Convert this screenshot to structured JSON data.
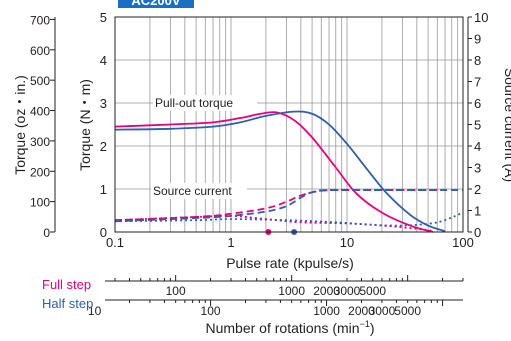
{
  "header": {
    "tag_text": "AC200V",
    "tag_color": "#1b6fc2"
  },
  "chart_data": {
    "type": "line",
    "x_scale": "log",
    "xlim": [
      0.1,
      100
    ],
    "xlabel": "Pulse rate (kpulse/s)",
    "x_ticks": [
      {
        "value": 0.1,
        "label": "0.1"
      },
      {
        "value": 1,
        "label": "1"
      },
      {
        "value": 10,
        "label": "10"
      },
      {
        "value": 100,
        "label": "100"
      }
    ],
    "ylabel_nm": "Torque (N・m)",
    "ylim_nm": [
      0,
      5
    ],
    "y_ticks_nm": [
      "0",
      "1",
      "2",
      "3",
      "4",
      "5"
    ],
    "ylabel_ozin": "Torque (oz・in.)",
    "y_ticks_ozin": [
      {
        "value": 0,
        "label": "0"
      },
      {
        "value": 100,
        "label": "100"
      },
      {
        "value": 200,
        "label": "200"
      },
      {
        "value": 300,
        "label": "300"
      },
      {
        "value": 400,
        "label": "400"
      },
      {
        "value": 500,
        "label": "500"
      },
      {
        "value": 600,
        "label": "600"
      },
      {
        "value": 700,
        "label": "700"
      }
    ],
    "ylabel_right": "Source current (A)",
    "ylim_right": [
      0,
      10
    ],
    "y_ticks_right": [
      "0",
      "1",
      "2",
      "3",
      "4",
      "5",
      "6",
      "7",
      "8",
      "9",
      "10"
    ],
    "annotations": [
      "Pull-out torque",
      "Source current"
    ],
    "colors": {
      "full_step": "#e5007f",
      "half_step": "#2f5fa8"
    },
    "series": [
      {
        "key": "full_pullout",
        "axis": "torque",
        "style": "solid",
        "color": "#e5007f",
        "points": [
          [
            0.1,
            2.45
          ],
          [
            0.3,
            2.5
          ],
          [
            0.7,
            2.55
          ],
          [
            1.2,
            2.65
          ],
          [
            1.8,
            2.75
          ],
          [
            2.5,
            2.78
          ],
          [
            3.5,
            2.6
          ],
          [
            5,
            2.2
          ],
          [
            8,
            1.5
          ],
          [
            12,
            0.9
          ],
          [
            20,
            0.45
          ],
          [
            35,
            0.15
          ],
          [
            55,
            0.0
          ]
        ]
      },
      {
        "key": "half_pullout",
        "axis": "torque",
        "style": "solid",
        "color": "#2f5fa8",
        "points": [
          [
            0.1,
            2.38
          ],
          [
            0.3,
            2.4
          ],
          [
            0.7,
            2.45
          ],
          [
            1.2,
            2.55
          ],
          [
            2,
            2.7
          ],
          [
            3.5,
            2.8
          ],
          [
            5,
            2.75
          ],
          [
            7,
            2.5
          ],
          [
            10,
            2.05
          ],
          [
            15,
            1.45
          ],
          [
            22,
            0.9
          ],
          [
            35,
            0.4
          ],
          [
            50,
            0.15
          ],
          [
            70,
            0.02
          ]
        ]
      },
      {
        "key": "full_current",
        "axis": "current",
        "style": "dashed",
        "color": "#e5007f",
        "points": [
          [
            0.1,
            0.55
          ],
          [
            0.5,
            0.7
          ],
          [
            1,
            0.85
          ],
          [
            2,
            1.1
          ],
          [
            3,
            1.4
          ],
          [
            4,
            1.7
          ],
          [
            6,
            1.92
          ],
          [
            10,
            1.95
          ],
          [
            30,
            1.95
          ],
          [
            60,
            1.95
          ]
        ]
      },
      {
        "key": "half_current",
        "axis": "current",
        "style": "dashed",
        "color": "#2f5fa8",
        "points": [
          [
            0.1,
            0.5
          ],
          [
            0.5,
            0.65
          ],
          [
            1,
            0.75
          ],
          [
            2,
            0.95
          ],
          [
            3,
            1.2
          ],
          [
            4,
            1.6
          ],
          [
            5,
            1.85
          ],
          [
            7,
            1.95
          ],
          [
            20,
            1.95
          ],
          [
            100,
            1.95
          ]
        ]
      },
      {
        "key": "full_current_low",
        "axis": "current",
        "style": "dotted",
        "color": "#e5007f",
        "points": [
          [
            0.1,
            0.55
          ],
          [
            0.5,
            0.7
          ],
          [
            1,
            0.75
          ],
          [
            2,
            0.6
          ],
          [
            4,
            0.45
          ],
          [
            10,
            0.4
          ],
          [
            20,
            0.3
          ],
          [
            40,
            0.15
          ],
          [
            55,
            0.05
          ]
        ]
      },
      {
        "key": "half_current_low",
        "axis": "current",
        "style": "dotted",
        "color": "#2f5fa8",
        "points": [
          [
            0.1,
            0.5
          ],
          [
            0.5,
            0.55
          ],
          [
            1,
            0.6
          ],
          [
            3,
            0.55
          ],
          [
            8,
            0.45
          ],
          [
            15,
            0.35
          ],
          [
            30,
            0.3
          ],
          [
            60,
            0.45
          ],
          [
            100,
            0.9
          ]
        ]
      }
    ],
    "markers": [
      {
        "key": "full_step_marker",
        "x": 2.1,
        "color": "#e5007f"
      },
      {
        "key": "half_step_marker",
        "x": 3.5,
        "color": "#2f5fa8"
      }
    ],
    "rotation_axes": [
      {
        "label": "Full step",
        "color": "#e5007f",
        "ticks": [
          {
            "rpm": 100,
            "label": "100"
          },
          {
            "rpm": 1000,
            "label": "1000"
          },
          {
            "rpm": 2000,
            "label": "2000"
          },
          {
            "rpm": 3000,
            "label": "3000"
          },
          {
            "rpm": 5000,
            "label": "5000"
          }
        ]
      },
      {
        "label": "Half step",
        "color": "#2f5fa8",
        "ticks": [
          {
            "rpm": 10,
            "label": "10"
          },
          {
            "rpm": 100,
            "label": "100"
          },
          {
            "rpm": 1000,
            "label": "1000"
          },
          {
            "rpm": 2000,
            "label": "2000"
          },
          {
            "rpm": 3000,
            "label": "3000"
          },
          {
            "rpm": 5000,
            "label": "5000"
          }
        ]
      }
    ],
    "rotation_xlabel_text": "Number of rotations (min",
    "rotation_xlabel_sup": "−1",
    "rotation_xlabel_close": ")"
  }
}
